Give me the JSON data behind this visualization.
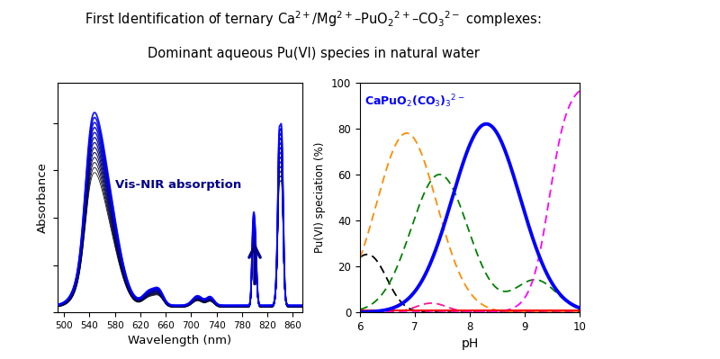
{
  "title_line1": "First Identification of ternary Ca$^{2+}$/Mg$^{2+}$–PuO$_2$$^{2+}$–CO$_3$$^{2-}$ complexes:",
  "title_line2": "Dominant aqueous Pu(VI) species in natural water",
  "left_xlabel": "Wavelength (nm)",
  "left_ylabel": "Absorbance",
  "left_annotation": "Vis-NIR absorption",
  "left_xlim": [
    490,
    875
  ],
  "left_xticks": [
    500,
    540,
    580,
    620,
    660,
    700,
    740,
    780,
    820,
    860
  ],
  "right_xlabel": "pH",
  "right_ylabel": "Pu(VI) speciation (%)",
  "right_label": "CaPuO$_2$(CO$_3$)$_3$$^{2-}$",
  "right_xlim": [
    6,
    10
  ],
  "right_xticks": [
    6,
    7,
    8,
    9,
    10
  ],
  "right_ylim": [
    0,
    100
  ],
  "right_yticks": [
    0,
    20,
    40,
    60,
    80,
    100
  ],
  "bg_color": "#ffffff"
}
